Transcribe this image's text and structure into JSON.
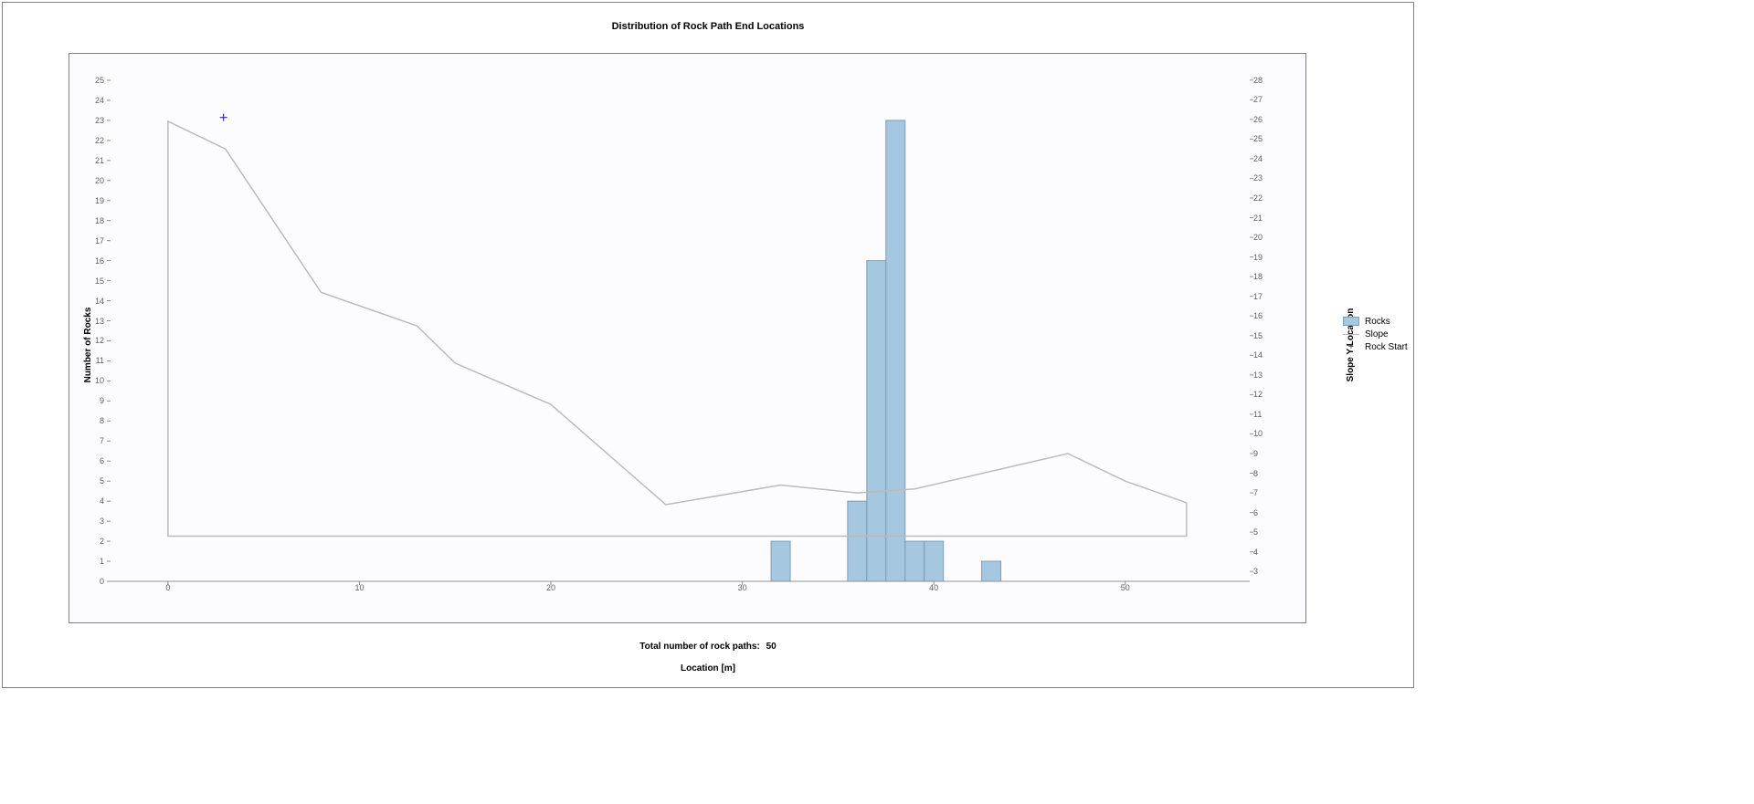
{
  "chart": {
    "type": "bar+line+scatter",
    "title": "Distribution of Rock Path End Locations",
    "x_axis": {
      "label": "Location [m]",
      "min": -3,
      "max": 56.5,
      "ticks": [
        0,
        10,
        20,
        30,
        40,
        50
      ]
    },
    "y_left": {
      "label": "Number of Rocks",
      "min": 0,
      "max": 25.5,
      "ticks": [
        0,
        1,
        2,
        3,
        4,
        5,
        6,
        7,
        8,
        9,
        10,
        11,
        12,
        13,
        14,
        15,
        16,
        17,
        18,
        19,
        20,
        21,
        22,
        23,
        24,
        25
      ]
    },
    "y_right": {
      "label": "Slope Y Location",
      "min": 2.5,
      "max": 28.5,
      "ticks": [
        3,
        4,
        5,
        6,
        7,
        8,
        9,
        10,
        11,
        12,
        13,
        14,
        15,
        16,
        17,
        18,
        19,
        20,
        21,
        22,
        23,
        24,
        25,
        26,
        27,
        28
      ]
    },
    "bars": {
      "fill_color": "#a5c7df",
      "border_color": "#7a9fb8",
      "bar_width": 1.0,
      "data": [
        {
          "x": 32,
          "y": 2
        },
        {
          "x": 36,
          "y": 4
        },
        {
          "x": 37,
          "y": 16
        },
        {
          "x": 38,
          "y": 23
        },
        {
          "x": 39,
          "y": 2
        },
        {
          "x": 40,
          "y": 2
        },
        {
          "x": 43,
          "y": 1
        }
      ]
    },
    "slope_line": {
      "color": "#bbbbbb",
      "width": 1.5,
      "points": [
        {
          "x": 0,
          "y": 25.9
        },
        {
          "x": 3,
          "y": 24.5
        },
        {
          "x": 8,
          "y": 17.2
        },
        {
          "x": 13,
          "y": 15.5
        },
        {
          "x": 15,
          "y": 13.6
        },
        {
          "x": 20,
          "y": 11.5
        },
        {
          "x": 26,
          "y": 6.4
        },
        {
          "x": 32,
          "y": 7.4
        },
        {
          "x": 36,
          "y": 7.0
        },
        {
          "x": 39,
          "y": 7.2
        },
        {
          "x": 47,
          "y": 9.0
        },
        {
          "x": 50,
          "y": 7.6
        },
        {
          "x": 53.2,
          "y": 6.5
        }
      ],
      "baseline_y": 4.8
    },
    "rock_start": {
      "color": "#3030b0",
      "marker": "cross",
      "size": 8,
      "points": [
        {
          "x": 2.9,
          "y": 26.1
        }
      ]
    },
    "background_color": "#fcfcfe",
    "frame_color": "#808080",
    "tick_color": "#606060",
    "title_fontsize": 11,
    "label_fontsize": 10,
    "tick_fontsize": 9
  },
  "legend": {
    "items": [
      {
        "type": "swatch",
        "label": "Rocks"
      },
      {
        "type": "line",
        "label": "Slope"
      },
      {
        "type": "cross",
        "label": "Rock Start"
      }
    ]
  },
  "footer": {
    "label": "Total number of rock paths:",
    "value": "50"
  }
}
